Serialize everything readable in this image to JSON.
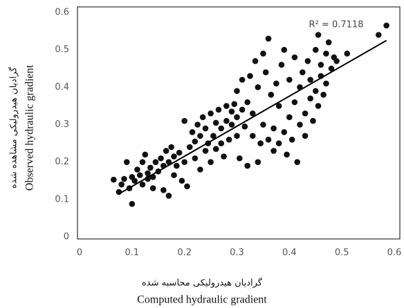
{
  "chart_data": {
    "type": "scatter",
    "x_label_fa": "گرادیان هیدرولیکی محاسبه شده",
    "x_label": "Computed hydraulic gradient",
    "y_label_fa": "گرادیان هیدرولیکی مشاهده شده",
    "y_label": "Observed hydraulic gradient",
    "annotation": "R² = 0.7118",
    "color": "#111111",
    "xlim": [
      0,
      0.6
    ],
    "ylim": [
      0,
      0.6
    ],
    "xticks": [
      0,
      0.1,
      0.2,
      0.3,
      0.4,
      0.5,
      0.6
    ],
    "yticks": [
      0,
      0.1,
      0.2,
      0.3,
      0.4,
      0.5,
      0.6
    ],
    "trendline": {
      "x": [
        0.075,
        0.585
      ],
      "values": [
        0.115,
        0.525
      ]
    },
    "x": [
      0.065,
      0.075,
      0.08,
      0.085,
      0.09,
      0.095,
      0.1,
      0.1,
      0.105,
      0.11,
      0.115,
      0.12,
      0.12,
      0.125,
      0.13,
      0.13,
      0.135,
      0.14,
      0.14,
      0.145,
      0.15,
      0.155,
      0.16,
      0.16,
      0.165,
      0.17,
      0.17,
      0.175,
      0.18,
      0.18,
      0.185,
      0.19,
      0.195,
      0.2,
      0.2,
      0.205,
      0.21,
      0.215,
      0.22,
      0.22,
      0.225,
      0.23,
      0.23,
      0.235,
      0.24,
      0.24,
      0.245,
      0.25,
      0.25,
      0.255,
      0.26,
      0.26,
      0.265,
      0.27,
      0.27,
      0.275,
      0.28,
      0.28,
      0.285,
      0.29,
      0.29,
      0.295,
      0.3,
      0.3,
      0.3,
      0.305,
      0.31,
      0.31,
      0.315,
      0.32,
      0.32,
      0.325,
      0.33,
      0.33,
      0.335,
      0.34,
      0.34,
      0.345,
      0.35,
      0.35,
      0.355,
      0.36,
      0.36,
      0.365,
      0.37,
      0.37,
      0.375,
      0.38,
      0.38,
      0.385,
      0.39,
      0.39,
      0.395,
      0.4,
      0.4,
      0.405,
      0.41,
      0.41,
      0.415,
      0.42,
      0.42,
      0.425,
      0.43,
      0.43,
      0.435,
      0.44,
      0.44,
      0.445,
      0.45,
      0.45,
      0.455,
      0.455,
      0.46,
      0.46,
      0.465,
      0.47,
      0.47,
      0.475,
      0.48,
      0.485,
      0.49,
      0.51,
      0.57,
      0.585
    ],
    "values": [
      0.153,
      0.12,
      0.14,
      0.155,
      0.2,
      0.13,
      0.088,
      0.16,
      0.15,
      0.18,
      0.165,
      0.14,
      0.2,
      0.22,
      0.17,
      0.155,
      0.185,
      0.16,
      0.13,
      0.2,
      0.175,
      0.21,
      0.125,
      0.19,
      0.23,
      0.11,
      0.2,
      0.24,
      0.165,
      0.215,
      0.19,
      0.225,
      0.15,
      0.2,
      0.31,
      0.135,
      0.24,
      0.28,
      0.21,
      0.255,
      0.3,
      0.18,
      0.27,
      0.32,
      0.23,
      0.29,
      0.25,
      0.2,
      0.33,
      0.27,
      0.305,
      0.235,
      0.34,
      0.25,
      0.29,
      0.215,
      0.31,
      0.35,
      0.26,
      0.335,
      0.3,
      0.355,
      0.27,
      0.32,
      0.39,
      0.21,
      0.34,
      0.42,
      0.295,
      0.19,
      0.36,
      0.43,
      0.27,
      0.33,
      0.47,
      0.2,
      0.4,
      0.25,
      0.49,
      0.3,
      0.44,
      0.26,
      0.53,
      0.38,
      0.23,
      0.29,
      0.41,
      0.25,
      0.35,
      0.46,
      0.28,
      0.5,
      0.22,
      0.32,
      0.42,
      0.26,
      0.36,
      0.48,
      0.2,
      0.3,
      0.4,
      0.44,
      0.33,
      0.27,
      0.47,
      0.37,
      0.42,
      0.31,
      0.39,
      0.5,
      0.54,
      0.35,
      0.43,
      0.46,
      0.38,
      0.49,
      0.41,
      0.52,
      0.45,
      0.48,
      0.47,
      0.49,
      0.54,
      0.565
    ]
  }
}
